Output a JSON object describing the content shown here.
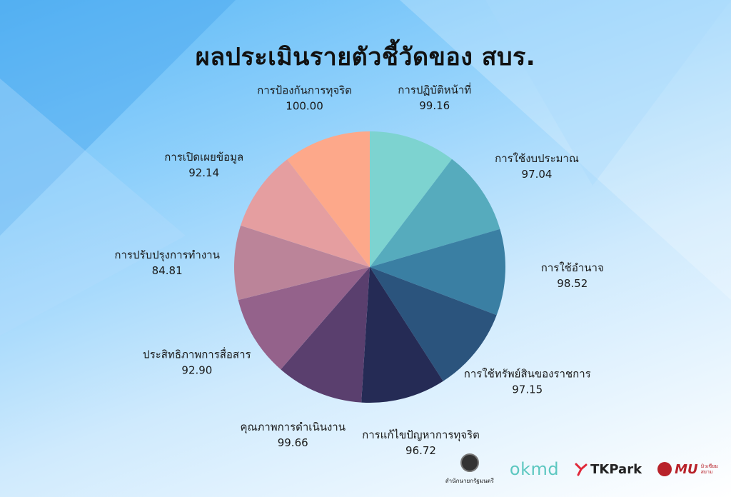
{
  "title": "ผลประเมินรายตัวชี้วัดของ สบร.",
  "chart_data": {
    "type": "pie",
    "slices": [
      {
        "label": "การปฏิบัติหน้าที่",
        "value": 99.16,
        "display": "99.16",
        "color": "#7dd3d0"
      },
      {
        "label": "การใช้งบประมาณ",
        "value": 97.04,
        "display": "97.04",
        "color": "#56abbd"
      },
      {
        "label": "การใช้อำนาจ",
        "value": 98.52,
        "display": "98.52",
        "color": "#3a7fa3"
      },
      {
        "label": "การใช้ทรัพย์สินของราชการ",
        "value": 97.15,
        "display": "97.15",
        "color": "#2b547d"
      },
      {
        "label": "การแก้ไขปัญหาการทุจริต",
        "value": 96.72,
        "display": "96.72",
        "color": "#252b55"
      },
      {
        "label": "คุณภาพการดำเนินงาน",
        "value": 99.66,
        "display": "99.66",
        "color": "#5a3f6e"
      },
      {
        "label": "ประสิทธิภาพการสื่อสาร",
        "value": 92.9,
        "display": "92.90",
        "color": "#94628b"
      },
      {
        "label": "การปรับปรุงการทำงาน",
        "value": 84.81,
        "display": "84.81",
        "color": "#bb8499"
      },
      {
        "label": "การเปิดเผยข้อมูล",
        "value": 92.14,
        "display": "92.14",
        "color": "#e59ea0"
      },
      {
        "label": "การป้องกันการทุจริต",
        "value": 100.0,
        "display": "100.00",
        "color": "#fda88a"
      }
    ]
  },
  "logos": {
    "seal_text": "สำนักนายกรัฐมนตรี",
    "okmd": "okmd",
    "tk": "TKPark",
    "mu": "MU",
    "mu_sub1": "มิวเซียม",
    "mu_sub2": "สยาม"
  }
}
